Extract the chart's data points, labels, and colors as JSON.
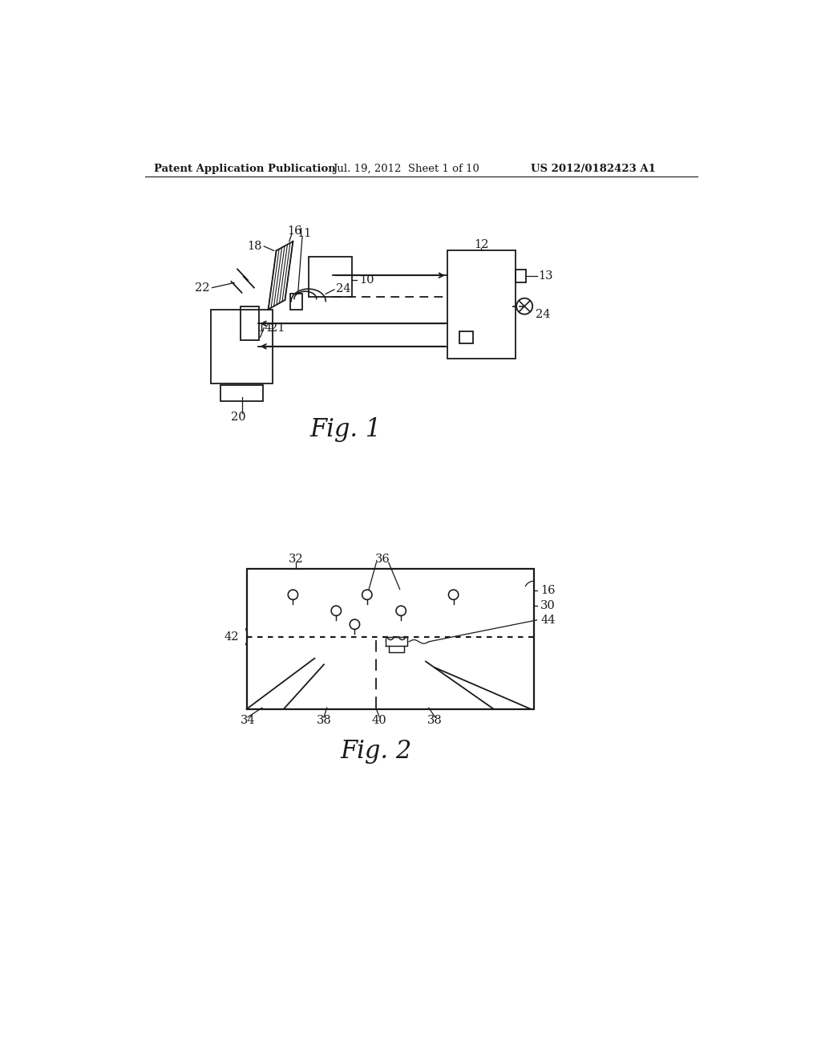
{
  "header_left": "Patent Application Publication",
  "header_mid": "Jul. 19, 2012  Sheet 1 of 10",
  "header_right": "US 2012/0182423 A1",
  "fig1_title": "Fig. 1",
  "fig2_title": "Fig. 2",
  "bg_color": "#ffffff",
  "line_color": "#1a1a1a",
  "label_fontsize": 10.5,
  "header_fontsize": 9.5
}
